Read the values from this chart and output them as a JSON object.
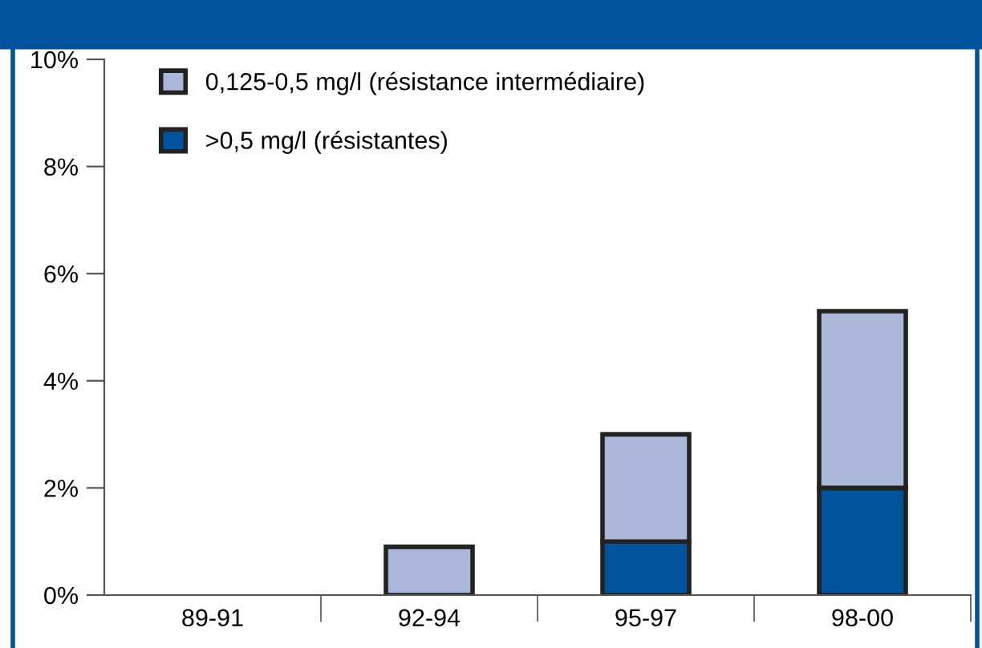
{
  "chart_data": {
    "type": "bar",
    "stacked": true,
    "categories": [
      "89-91",
      "92-94",
      "95-97",
      "98-00"
    ],
    "series": [
      {
        "name": ">0,5 mg/l (résistantes)",
        "color": "#00529b",
        "values": [
          null,
          null,
          1.0,
          2.0
        ]
      },
      {
        "name": "0,125-0,5 mg/l (résistance intermédiaire)",
        "color": "#aab7d8",
        "values": [
          null,
          0.9,
          2.0,
          3.3
        ]
      }
    ],
    "ylim": [
      0,
      10
    ],
    "yticks": [
      {
        "value": 0,
        "label": "0%"
      },
      {
        "value": 2,
        "label": "2%"
      },
      {
        "value": 4,
        "label": "4%"
      },
      {
        "value": 6,
        "label": "6%"
      },
      {
        "value": 8,
        "label": "8%"
      },
      {
        "value": 10,
        "label": "10%"
      }
    ],
    "grid": false,
    "legend": "top left"
  }
}
